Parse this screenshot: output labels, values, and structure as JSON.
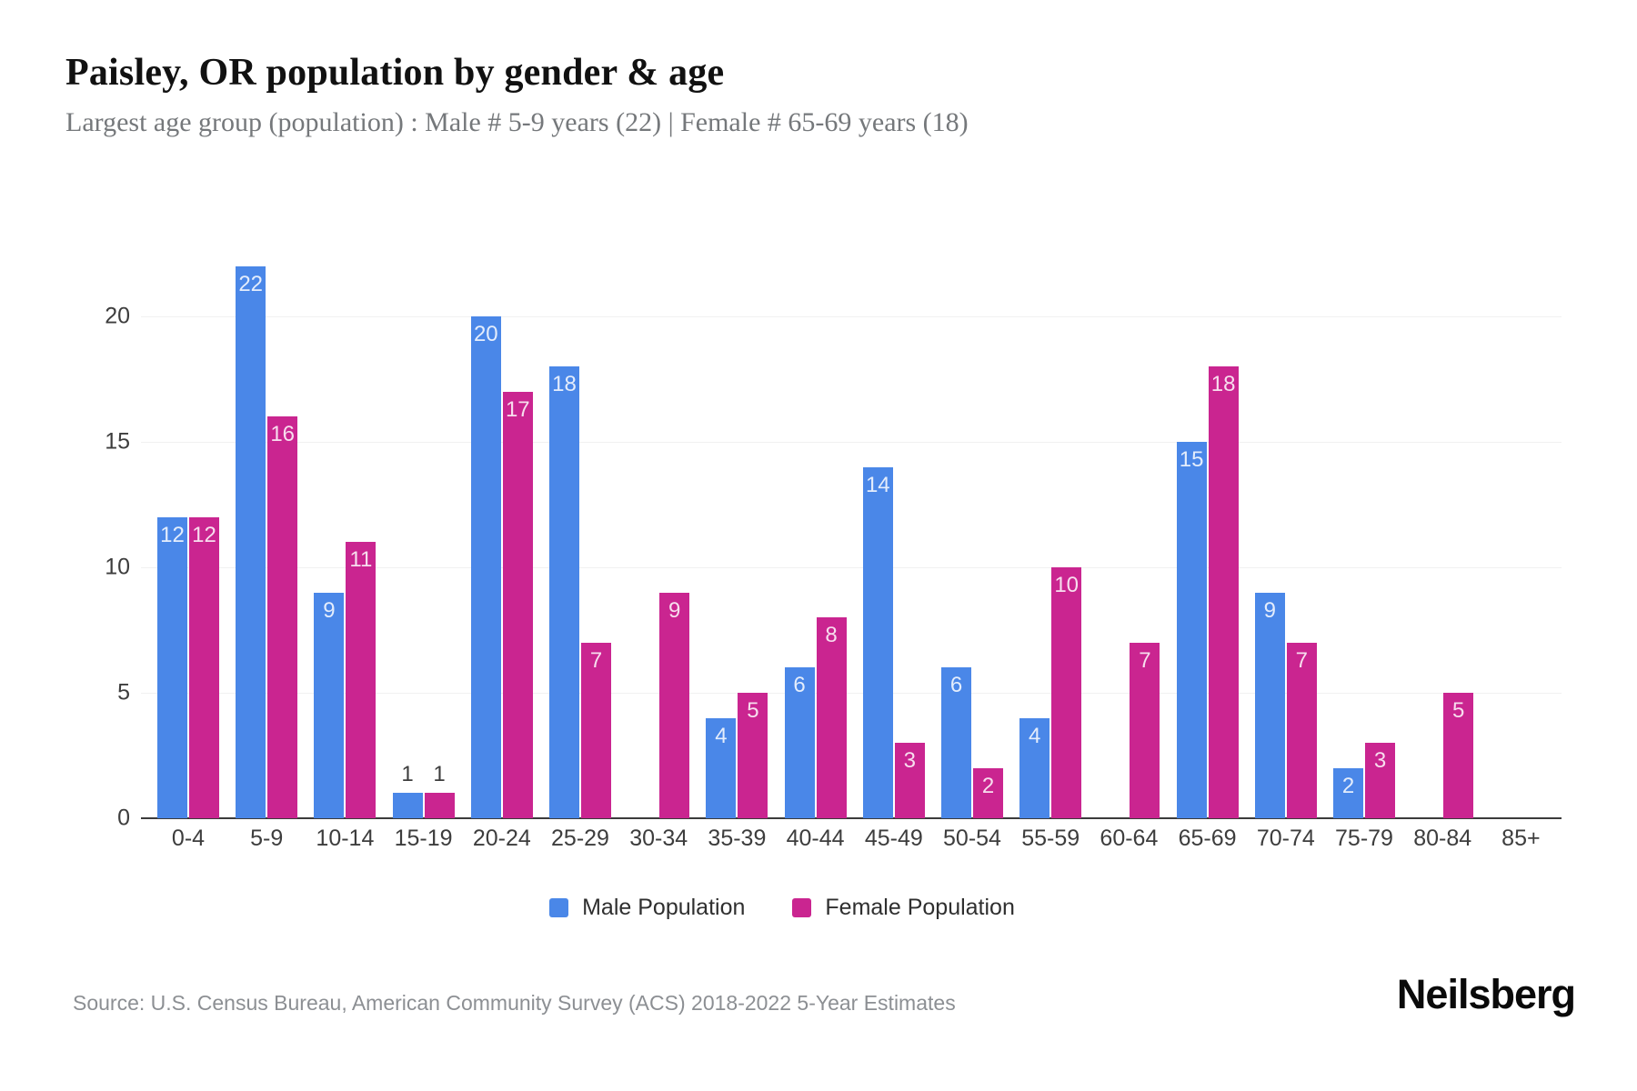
{
  "header": {
    "title": "Paisley, OR population by gender & age",
    "subtitle": "Largest age group (population) : Male # 5-9 years (22) | Female # 65-69 years (18)"
  },
  "chart_data": {
    "type": "bar",
    "categories": [
      "0-4",
      "5-9",
      "10-14",
      "15-19",
      "20-24",
      "25-29",
      "30-34",
      "35-39",
      "40-44",
      "45-49",
      "50-54",
      "55-59",
      "60-64",
      "65-69",
      "70-74",
      "75-79",
      "80-84",
      "85+"
    ],
    "series": [
      {
        "name": "Male Population",
        "color": "#4a87e8",
        "values": [
          12,
          22,
          9,
          1,
          20,
          18,
          0,
          4,
          6,
          14,
          6,
          4,
          0,
          15,
          9,
          2,
          0,
          0
        ]
      },
      {
        "name": "Female Population",
        "color": "#ca2590",
        "values": [
          12,
          16,
          11,
          1,
          17,
          7,
          9,
          5,
          8,
          3,
          2,
          10,
          7,
          18,
          7,
          3,
          5,
          0
        ]
      }
    ],
    "title": "Paisley, OR population by gender & age",
    "xlabel": "",
    "ylabel": "",
    "yticks": [
      0,
      5,
      10,
      15,
      20
    ],
    "ylim": [
      0,
      23
    ],
    "grid": true,
    "legend_position": "bottom",
    "bar_label_color_inside": "#ffffff",
    "bar_label_color_outside": "#3d3d3d"
  },
  "footer": {
    "source": "Source: U.S. Census Bureau, American Community Survey (ACS) 2018-2022 5-Year Estimates",
    "brand": "Neilsberg"
  }
}
